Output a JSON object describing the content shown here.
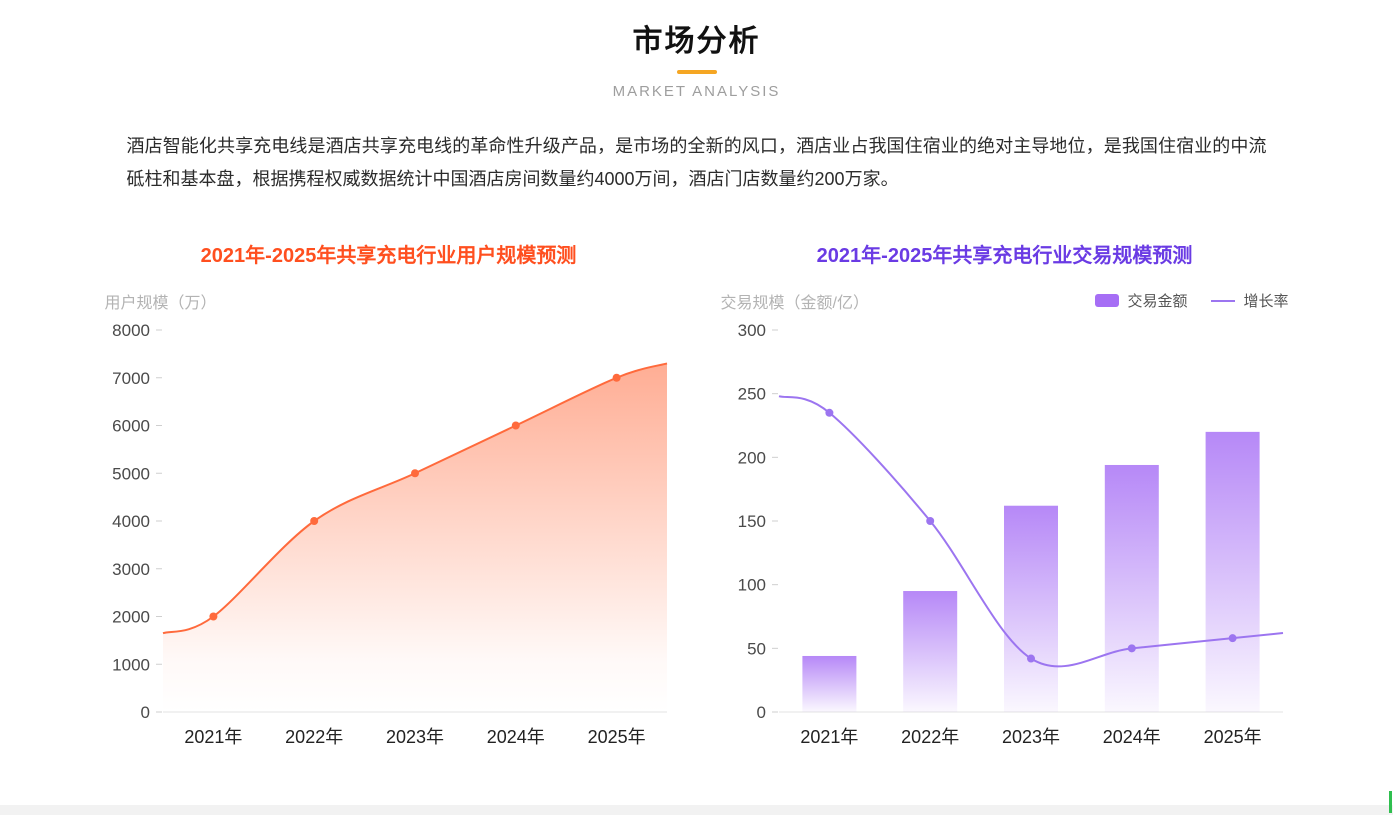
{
  "page": {
    "title": "市场分析",
    "subtitle": "MARKET ANALYSIS",
    "description": "酒店智能化共享充电线是酒店共享充电线的革命性升级产品，是市场的全新的风口，酒店业占我国住宿业的绝对主导地位，是我国住宿业的中流砥柱和基本盘，根据携程权威数据统计中国酒店房间数量约4000万间，酒店门店数量约200万家。",
    "accent_divider_color": "#f5a623"
  },
  "chart_data": [
    {
      "id": "user-scale-forecast",
      "type": "area",
      "title": "2021年-2025年共享充电行业用户规模预测",
      "ylabel": "用户规模（万）",
      "categories": [
        "2021年",
        "2022年",
        "2023年",
        "2024年",
        "2025年"
      ],
      "values": [
        2000,
        4000,
        5000,
        6000,
        7000
      ],
      "edge_values": [
        1650,
        7300
      ],
      "ylim": [
        0,
        8000
      ],
      "ytick_step": 1000,
      "grid": false,
      "title_color": "#ff4f1f",
      "line_color": "#ff6a3c"
    },
    {
      "id": "transaction-scale-forecast",
      "type": "bar",
      "title": "2021年-2025年共享充电行业交易规模预测",
      "ylabel": "交易规模（金额/亿）",
      "categories": [
        "2021年",
        "2022年",
        "2023年",
        "2024年",
        "2025年"
      ],
      "series": [
        {
          "name": "交易金额",
          "type": "bar",
          "values": [
            44,
            95,
            162,
            194,
            220
          ]
        },
        {
          "name": "增长率",
          "type": "line",
          "values": [
            235,
            150,
            42,
            50,
            58
          ],
          "edge_values": [
            248,
            62
          ]
        }
      ],
      "ylim": [
        0,
        300
      ],
      "ytick_step": 50,
      "grid": false,
      "legend_position": "top-right",
      "title_color": "#6a3be4",
      "bar_color": "#a66ef5",
      "line_color": "#9c75f0"
    }
  ]
}
